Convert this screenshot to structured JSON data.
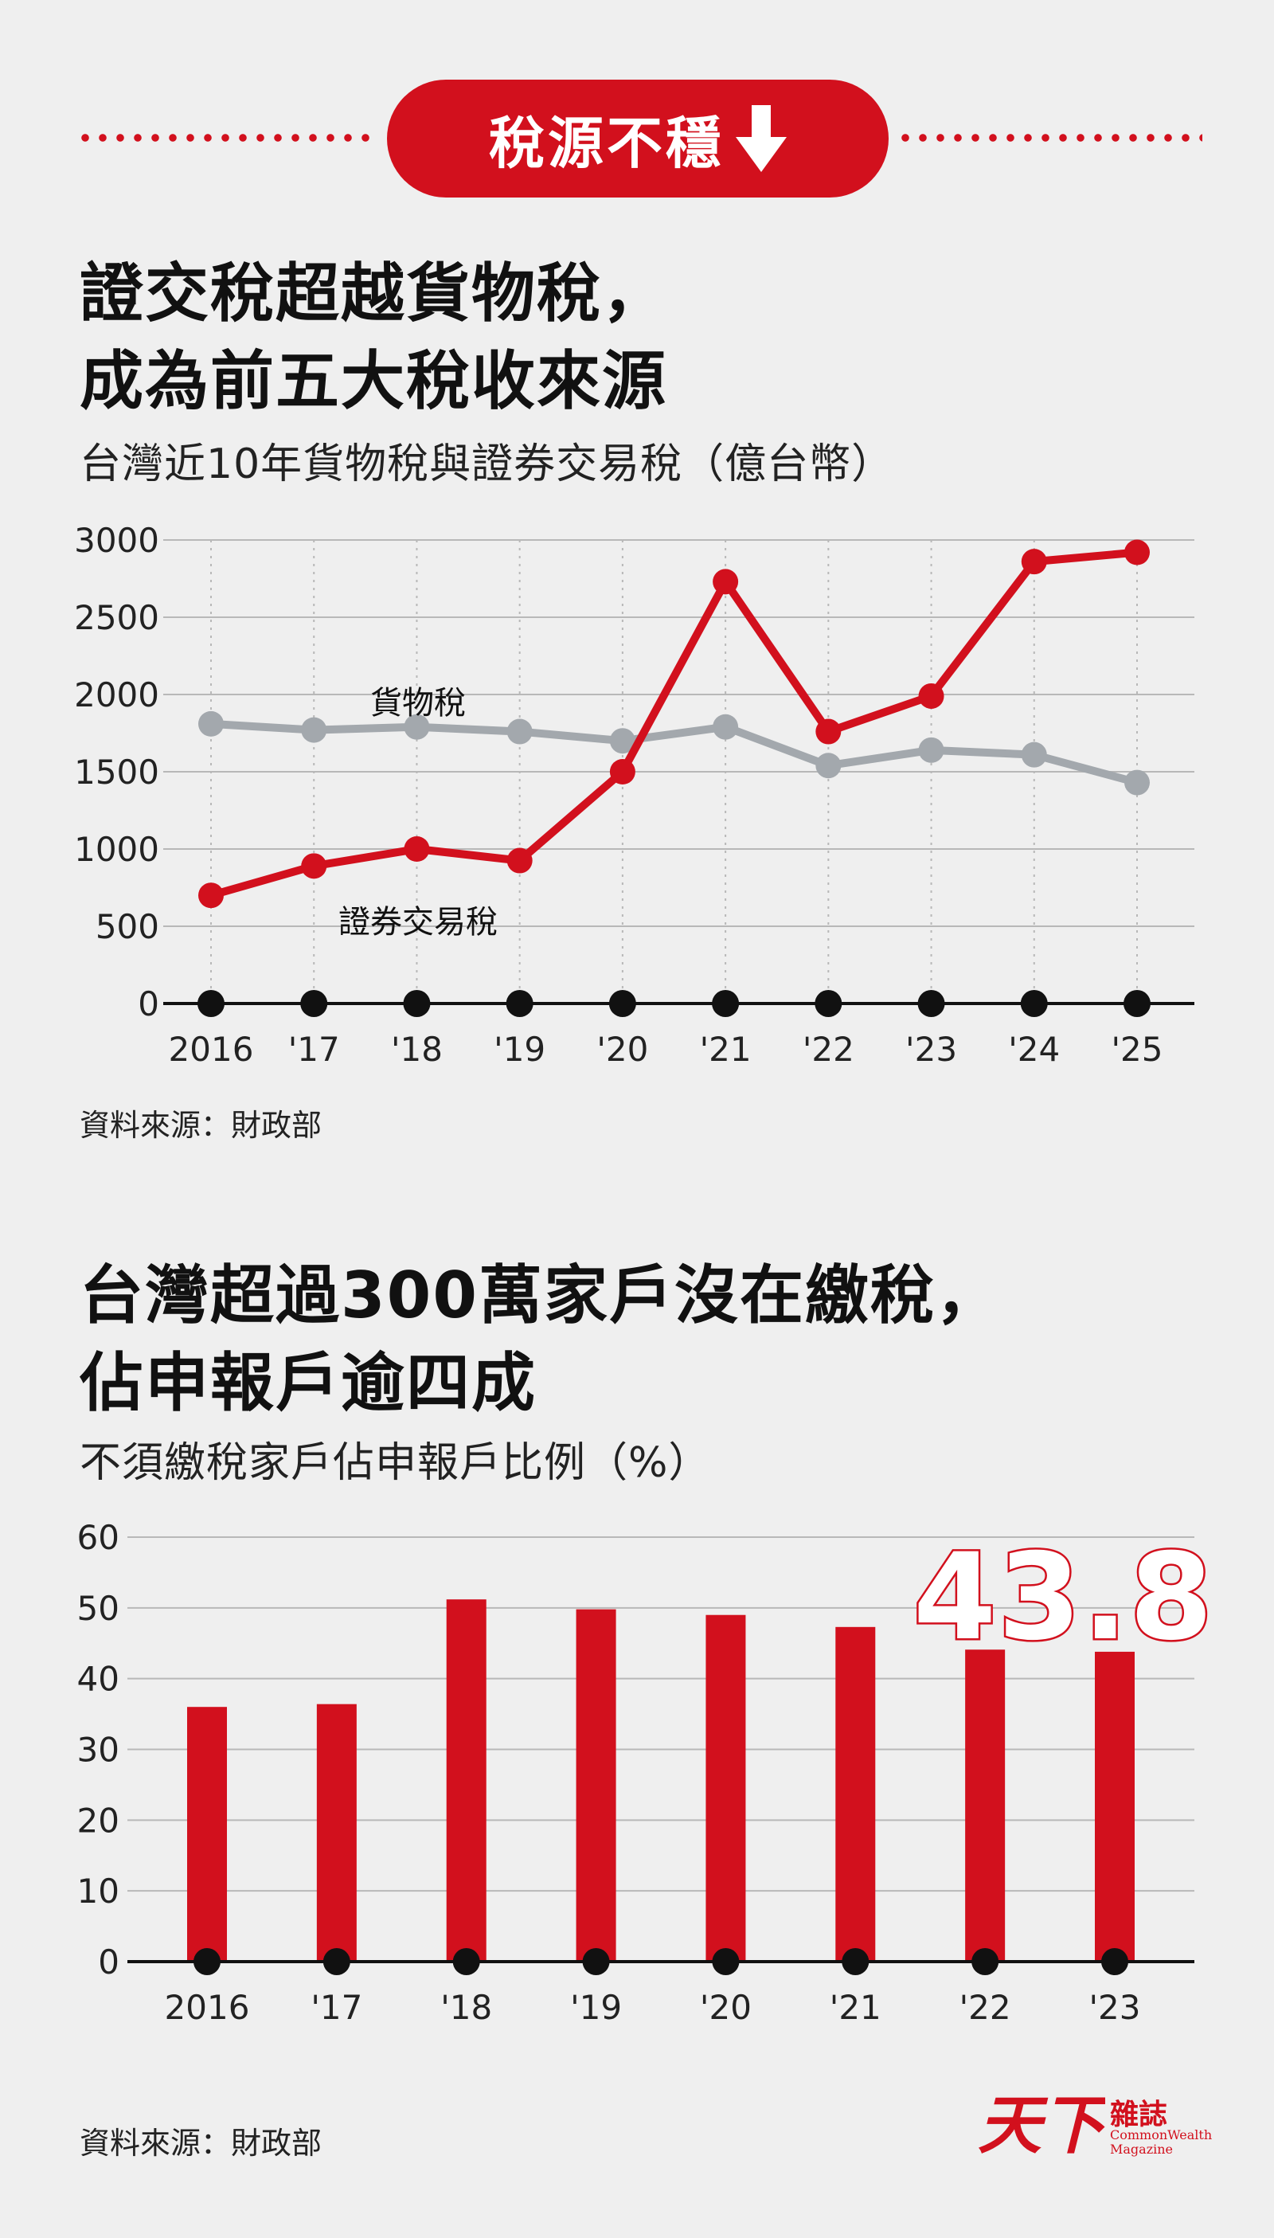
{
  "header": {
    "banner_text": "稅源不穩",
    "banner_arrow_icon": "down-arrow-icon",
    "accent_color": "#d2101d"
  },
  "section1": {
    "title_line1": "證交稅超越貨物稅，",
    "title_line2": "成為前五大稅收來源",
    "subtitle": "台灣近10年貨物稅與證券交易稅（億台幣）",
    "source": "資料來源：財政部"
  },
  "section2": {
    "title_line1": "台灣超過300萬家戶沒在繳稅，",
    "title_line2": "佔申報戶逾四成",
    "subtitle": "不須繳稅家戶佔申報戶比例（%）",
    "source": "資料來源：財政部"
  },
  "chart_data": [
    {
      "type": "line",
      "x": [
        "2016",
        "'17",
        "'18",
        "'19",
        "'20",
        "'21",
        "'22",
        "'23",
        "'24",
        "'25"
      ],
      "ylim": [
        0,
        3000
      ],
      "yticks": [
        "0",
        "500",
        "1000",
        "1500",
        "2000",
        "2500",
        "3000"
      ],
      "grid": true,
      "series": [
        {
          "name": "貨物稅",
          "color": "#a3a8ad",
          "values": [
            1810,
            1770,
            1790,
            1760,
            1700,
            1790,
            1540,
            1640,
            1610,
            1430
          ]
        },
        {
          "name": "證券交易稅",
          "color": "#d2101d",
          "values": [
            700,
            890,
            1000,
            925,
            1500,
            2730,
            1760,
            1990,
            2860,
            2920
          ]
        }
      ]
    },
    {
      "type": "bar",
      "categories": [
        "2016",
        "'17",
        "'18",
        "'19",
        "'20",
        "'21",
        "'22",
        "'23"
      ],
      "values": [
        36,
        36.4,
        51.2,
        49.8,
        49,
        47.3,
        44.1,
        43.8
      ],
      "ylim": [
        0,
        60
      ],
      "yticks": [
        "0",
        "10",
        "20",
        "30",
        "40",
        "50",
        "60"
      ],
      "grid": true,
      "color": "#d2101d",
      "annotation": "43.8"
    }
  ],
  "logo": {
    "mark_text": "天下",
    "zh_text": "雜誌",
    "en_line1": "CommonWealth",
    "en_line2": "Magazine"
  }
}
